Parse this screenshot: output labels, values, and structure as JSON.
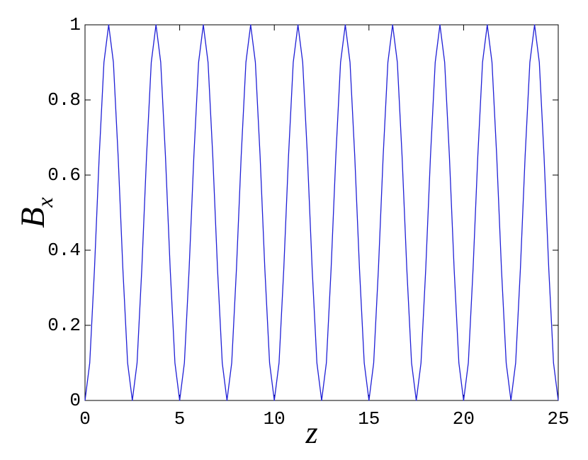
{
  "chart_data": {
    "type": "line",
    "xlabel": "z",
    "ylabel": "B",
    "ylabel_sub": "x",
    "x": [
      0,
      0.25,
      0.5,
      0.75,
      1,
      1.25,
      1.5,
      1.75,
      2,
      2.25,
      2.5,
      2.75,
      3,
      3.25,
      3.5,
      3.75,
      4,
      4.25,
      4.5,
      4.75,
      5,
      5.25,
      5.5,
      5.75,
      6,
      6.25,
      6.5,
      6.75,
      7,
      7.25,
      7.5,
      7.75,
      8,
      8.25,
      8.5,
      8.75,
      9,
      9.25,
      9.5,
      9.75,
      10,
      10.25,
      10.5,
      10.75,
      11,
      11.25,
      11.5,
      11.75,
      12,
      12.25,
      12.5,
      12.75,
      13,
      13.25,
      13.5,
      13.75,
      14,
      14.25,
      14.5,
      14.75,
      15,
      15.25,
      15.5,
      15.75,
      16,
      16.25,
      16.5,
      16.75,
      17,
      17.25,
      17.5,
      17.75,
      18,
      18.25,
      18.5,
      18.75,
      19,
      19.25,
      19.5,
      19.75,
      20,
      20.25,
      20.5,
      20.75,
      21,
      21.25,
      21.5,
      21.75,
      22,
      22.25,
      22.5,
      22.75,
      23,
      23.25,
      23.5,
      23.75,
      24,
      24.25,
      24.5,
      24.75,
      25
    ],
    "values": [
      0,
      0.1,
      0.35,
      0.65,
      0.9,
      1,
      0.9,
      0.65,
      0.35,
      0.1,
      0,
      0.1,
      0.35,
      0.65,
      0.9,
      1,
      0.9,
      0.65,
      0.35,
      0.1,
      0,
      0.1,
      0.35,
      0.65,
      0.9,
      1,
      0.9,
      0.65,
      0.35,
      0.1,
      0,
      0.1,
      0.35,
      0.65,
      0.9,
      1,
      0.9,
      0.65,
      0.35,
      0.1,
      0,
      0.1,
      0.35,
      0.65,
      0.9,
      1,
      0.9,
      0.65,
      0.35,
      0.1,
      0,
      0.1,
      0.35,
      0.65,
      0.9,
      1,
      0.9,
      0.65,
      0.35,
      0.1,
      0,
      0.1,
      0.35,
      0.65,
      0.9,
      1,
      0.9,
      0.65,
      0.35,
      0.1,
      0,
      0.1,
      0.35,
      0.65,
      0.9,
      1,
      0.9,
      0.65,
      0.35,
      0.1,
      0,
      0.1,
      0.35,
      0.65,
      0.9,
      1,
      0.9,
      0.65,
      0.35,
      0.1,
      0,
      0.1,
      0.35,
      0.65,
      0.9,
      1,
      0.9,
      0.65,
      0.35,
      0.1,
      0
    ],
    "color": "#1f1fd6",
    "xlim": [
      0,
      25
    ],
    "xticks": [
      0,
      5,
      10,
      15,
      20,
      25
    ],
    "ylim": [
      0,
      1
    ],
    "yticks": [
      0,
      0.2,
      0.4,
      0.6,
      0.8,
      1
    ],
    "grid": false
  }
}
